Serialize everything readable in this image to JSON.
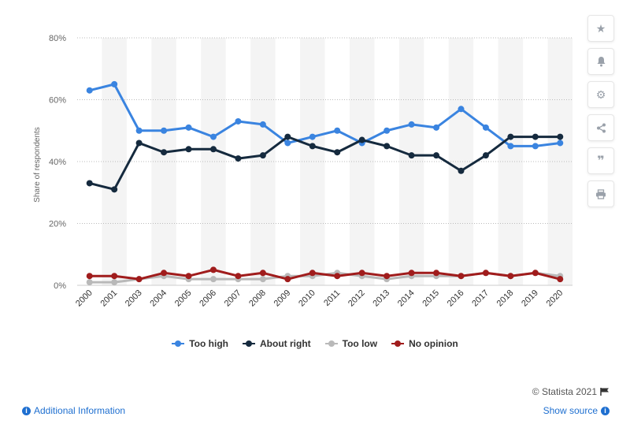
{
  "chart_data": {
    "type": "line",
    "x": [
      "2000",
      "2001",
      "2003",
      "2004",
      "2005",
      "2006",
      "2007",
      "2008",
      "2009",
      "2010",
      "2011",
      "2012",
      "2013",
      "2014",
      "2015",
      "2016",
      "2017",
      "2018",
      "2019",
      "2020"
    ],
    "ylabel": "Share of respondents",
    "xlabel": "",
    "ylim": [
      0,
      80
    ],
    "yticks": [
      "0%",
      "20%",
      "40%",
      "60%",
      "80%"
    ],
    "ytick_values": [
      0,
      20,
      40,
      60,
      80
    ],
    "grid": true,
    "legend_position": "bottom",
    "series": [
      {
        "name": "Too high",
        "color": "#3a84e0",
        "values": [
          63,
          65,
          50,
          50,
          51,
          48,
          53,
          52,
          46,
          48,
          50,
          46,
          50,
          52,
          51,
          57,
          51,
          45,
          45,
          46
        ]
      },
      {
        "name": "About right",
        "color": "#152a3e",
        "values": [
          33,
          31,
          46,
          43,
          44,
          44,
          41,
          42,
          48,
          45,
          43,
          47,
          45,
          42,
          42,
          37,
          42,
          48,
          48,
          48
        ]
      },
      {
        "name": "Too low",
        "color": "#b9b9b9",
        "values": [
          1,
          1,
          2,
          3,
          2,
          2,
          2,
          2,
          3,
          3,
          4,
          3,
          2,
          3,
          3,
          3,
          4,
          3,
          4,
          3
        ]
      },
      {
        "name": "No opinion",
        "color": "#a01c1c",
        "values": [
          3,
          3,
          2,
          4,
          3,
          5,
          3,
          4,
          2,
          4,
          3,
          4,
          3,
          4,
          4,
          3,
          4,
          3,
          4,
          2
        ]
      }
    ]
  },
  "footer": {
    "credit": "© Statista 2021",
    "additional_info": "Additional Information",
    "show_source": "Show source"
  },
  "toolbar": {
    "icons": [
      "star-icon",
      "bell-icon",
      "gear-icon",
      "share-icon",
      "quote-icon",
      "print-icon"
    ]
  }
}
